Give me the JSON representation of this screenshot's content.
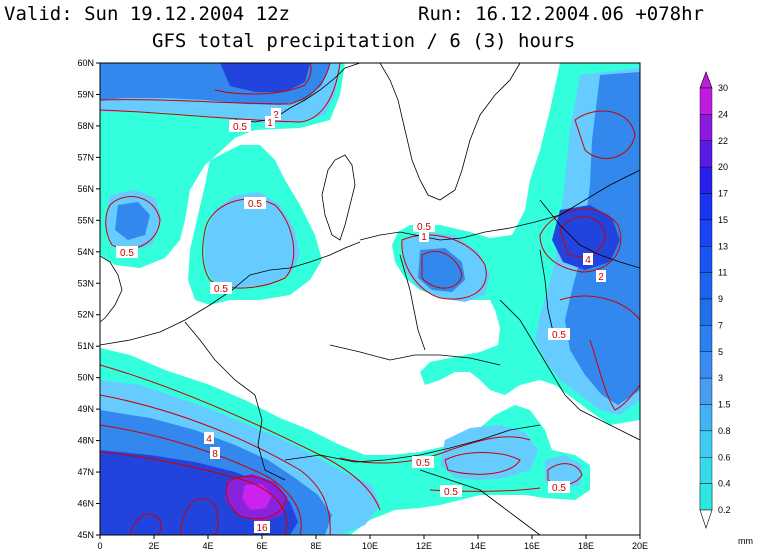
{
  "header": {
    "valid": "Valid: Sun 19.12.2004 12z",
    "run": "Run: 16.12.2004.06 +078hr",
    "title": "GFS total precipitation / 6 (3) hours"
  },
  "axes": {
    "lat_labels": [
      "60N",
      "59N",
      "58N",
      "57N",
      "56N",
      "55N",
      "54N",
      "53N",
      "52N",
      "51N",
      "50N",
      "49N",
      "48N",
      "47N",
      "46N",
      "45N"
    ],
    "lon_labels": [
      "0",
      "2E",
      "4E",
      "6E",
      "8E",
      "10E",
      "12E",
      "14E",
      "16E",
      "18E",
      "20E"
    ]
  },
  "contour_labels": [
    "2",
    "1",
    "0.5",
    "0.5",
    "0.5",
    "0.5",
    "0.5",
    "1",
    "4",
    "2",
    "0.5",
    "4",
    "8",
    "0.5",
    "0.5",
    "0.5",
    "16"
  ],
  "legend": {
    "levels": [
      "30",
      "24",
      "22",
      "20",
      "17",
      "15",
      "13",
      "11",
      "9",
      "7",
      "5",
      "3",
      "1.5",
      "0.8",
      "0.6",
      "0.4",
      "0.2"
    ],
    "colors": [
      "#c21be0",
      "#8a1ae0",
      "#5a1ae6",
      "#2a20ee",
      "#1a34f2",
      "#1a44f2",
      "#1a54f2",
      "#1a64ee",
      "#2070ea",
      "#2a80ee",
      "#3a8cf0",
      "#4a9cf2",
      "#40b4f2",
      "#40ccf0",
      "#36dae8",
      "#30e6e0",
      "#30f0d6"
    ],
    "unit": "mm"
  },
  "colors": {
    "cyan": "#33ffdd",
    "lightblue": "#66ccff",
    "blue": "#3388ee",
    "darkblue": "#2244dd",
    "purple": "#8822dd",
    "magenta": "#cc22ee",
    "contour": "#cc0000"
  }
}
